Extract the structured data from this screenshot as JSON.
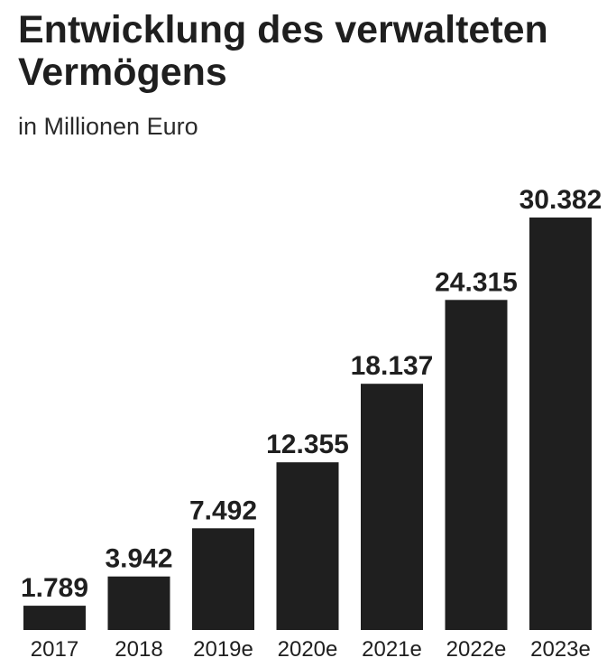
{
  "header": {
    "title": "Entwicklung des verwalteten Vermögens",
    "subtitle": "in Millionen Euro"
  },
  "colors": {
    "bar": "#1f1f1f",
    "text": "#1f1f1f",
    "background": "#ffffff"
  },
  "chart_data": {
    "type": "bar",
    "title": "Entwicklung des verwalteten Vermögens",
    "subtitle": "in Millionen Euro",
    "categories": [
      "2017",
      "2018",
      "2019e",
      "2020e",
      "2021e",
      "2022e",
      "2023e"
    ],
    "values": [
      1789,
      3942,
      7492,
      12355,
      18137,
      24315,
      30382
    ],
    "value_labels": [
      "1.789",
      "3.942",
      "7.492",
      "12.355",
      "18.137",
      "24.315",
      "30.382"
    ],
    "xlabel": "",
    "ylabel": "",
    "ylim": [
      0,
      30382
    ],
    "grid": false,
    "legend": "none"
  }
}
